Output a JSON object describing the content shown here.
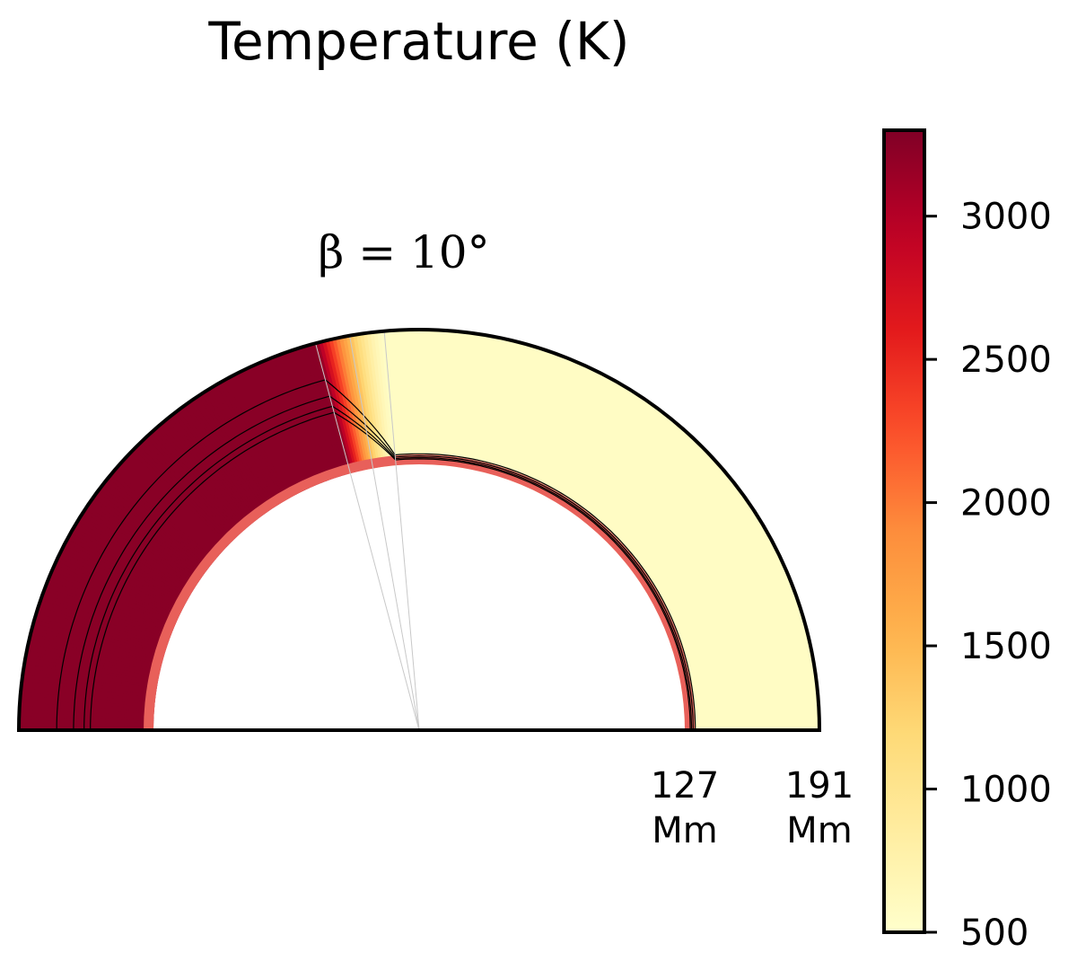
{
  "chart_data": {
    "type": "heatmap",
    "subtype": "polar-half-annulus",
    "title": "Temperature (K)",
    "subtitle": "β = 10°",
    "hot_side": "left",
    "hot_temperature": 3250,
    "cold_temperature": 560,
    "terminator_angle_from_vertical_deg": 10,
    "terminator_gradient_angles_deg": [
      -5,
      5
    ],
    "inner_radius": 127,
    "outer_radius": 191,
    "radius_unit": "Mm",
    "radius_labels": [
      {
        "value": 127,
        "lines": [
          "127",
          "Mm"
        ]
      },
      {
        "value": 191,
        "lines": [
          "191",
          "Mm"
        ]
      }
    ],
    "inner_boundary_color": "#e8605a",
    "contours": [
      {
        "name": "contour-outer",
        "hot_radius": 173,
        "cold_radius": 132
      },
      {
        "name": "contour-middle",
        "hot_radius": 165,
        "cold_radius": 131
      },
      {
        "name": "contour-inner",
        "hot_radius": 160,
        "cold_radius": 130.2
      },
      {
        "name": "contour-near-inner",
        "hot_radius": 157,
        "cold_radius": 129.6
      }
    ],
    "colorbar": {
      "min": 500,
      "max": 3300,
      "ticks": [
        3000,
        2500,
        2000,
        1500,
        1000,
        500
      ],
      "colormap": "YlOrRd",
      "orientation": "vertical",
      "placement": "right"
    }
  }
}
